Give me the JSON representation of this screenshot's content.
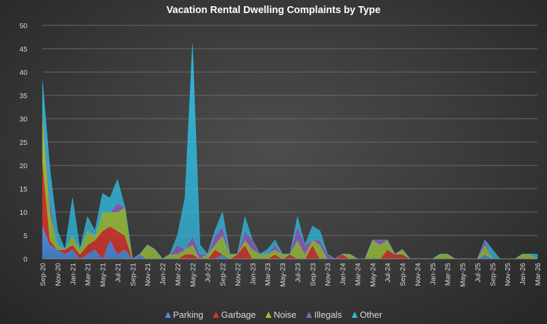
{
  "chart_data": {
    "type": "area",
    "stacked": true,
    "title": "Vacation Rental Dwelling Complaints by Type",
    "xlabel": "",
    "ylabel": "",
    "ylim": [
      0,
      50
    ],
    "yticks": [
      0,
      5,
      10,
      15,
      20,
      25,
      30,
      35,
      40,
      45,
      50
    ],
    "grid": true,
    "legend_position": "bottom",
    "x_tick_labels": [
      "Sep-20",
      "Nov-20",
      "Jan-21",
      "Mar-21",
      "May-21",
      "Jul-21",
      "Sep-21",
      "Nov-21",
      "Jan-22",
      "Mar-22",
      "May-22",
      "Jul-22",
      "Sep-22",
      "Nov-22",
      "Jan-23",
      "Mar-23",
      "May-23",
      "Jul-23",
      "Sep-23",
      "Nov-23",
      "Jan-24",
      "Mar-24",
      "May-24",
      "Jul-24",
      "Sep-24",
      "Nov-24",
      "Jan-25",
      "Mar-25",
      "May-25",
      "Jul-25",
      "Sep-25",
      "Nov-25",
      "Jan-26",
      "Mar-26"
    ],
    "x": [
      "Sep-20",
      "Oct-20",
      "Nov-20",
      "Dec-20",
      "Jan-21",
      "Feb-21",
      "Mar-21",
      "Apr-21",
      "May-21",
      "Jun-21",
      "Jul-21",
      "Aug-21",
      "Sep-21",
      "Oct-21",
      "Nov-21",
      "Dec-21",
      "Jan-22",
      "Feb-22",
      "Mar-22",
      "Apr-22",
      "May-22",
      "Jun-22",
      "Jul-22",
      "Aug-22",
      "Sep-22",
      "Oct-22",
      "Nov-22",
      "Dec-22",
      "Jan-23",
      "Feb-23",
      "Mar-23",
      "Apr-23",
      "May-23",
      "Jun-23",
      "Jul-23",
      "Aug-23",
      "Sep-23",
      "Oct-23",
      "Nov-23",
      "Dec-23",
      "Jan-24",
      "Feb-24",
      "Mar-24",
      "Apr-24",
      "May-24",
      "Jun-24",
      "Jul-24",
      "Aug-24",
      "Sep-24",
      "Oct-24",
      "Nov-24",
      "Dec-24",
      "Jan-25",
      "Feb-25",
      "Mar-25",
      "Apr-25",
      "May-25",
      "Jun-25",
      "Jul-25",
      "Aug-25",
      "Sep-25",
      "Oct-25",
      "Nov-25",
      "Dec-25",
      "Jan-26",
      "Feb-26",
      "Mar-26"
    ],
    "series": [
      {
        "name": "Parking",
        "color": "#4a8ee6",
        "values": [
          7,
          3,
          2,
          1,
          2,
          0,
          1,
          2,
          0,
          4,
          1,
          2,
          0,
          1,
          0,
          0,
          0,
          0,
          0,
          0,
          0,
          0,
          0,
          0,
          1,
          0,
          0,
          0,
          0,
          0,
          0,
          0,
          0,
          0,
          0,
          0,
          0,
          0,
          0,
          0,
          0,
          0,
          0,
          0,
          0,
          0,
          0,
          0,
          0,
          0,
          0,
          0,
          0,
          0,
          0,
          0,
          0,
          0,
          0,
          1,
          0,
          0,
          0,
          0,
          0,
          0,
          0
        ]
      },
      {
        "name": "Garbage",
        "color": "#d9342b",
        "values": [
          14,
          1,
          0,
          1,
          1,
          1,
          2,
          2,
          6,
          3,
          5,
          3,
          0,
          0,
          0,
          0,
          0,
          0,
          0,
          1,
          1,
          0,
          0,
          2,
          0,
          0,
          1,
          3,
          0,
          0,
          0,
          1,
          0,
          1,
          0,
          0,
          3,
          0,
          0,
          0,
          1,
          0,
          0,
          0,
          0,
          0,
          2,
          1,
          1,
          0,
          0,
          0,
          0,
          0,
          0,
          0,
          0,
          0,
          0,
          0,
          0,
          0,
          0,
          0,
          0,
          0,
          0
        ]
      },
      {
        "name": "Noise",
        "color": "#9bc43a",
        "values": [
          10,
          6,
          1,
          0,
          2,
          1,
          3,
          1,
          4,
          3,
          4,
          6,
          0,
          0,
          3,
          2,
          0,
          1,
          1,
          1,
          2,
          0,
          1,
          1,
          4,
          1,
          0,
          1,
          2,
          1,
          1,
          1,
          1,
          0,
          4,
          1,
          1,
          3,
          0,
          0,
          0,
          1,
          0,
          0,
          4,
          3,
          2,
          0,
          1,
          0,
          0,
          0,
          0,
          1,
          1,
          0,
          0,
          0,
          0,
          2,
          0,
          0,
          0,
          0,
          1,
          1,
          0
        ]
      },
      {
        "name": "Illegals",
        "color": "#8e5fc2",
        "values": [
          1,
          2,
          0,
          0,
          0,
          0,
          0,
          0,
          0,
          0,
          2,
          0,
          0,
          0,
          0,
          0,
          0,
          0,
          2,
          0,
          2,
          1,
          0,
          2,
          2,
          0,
          0,
          2,
          2,
          0,
          0,
          1,
          0,
          0,
          3,
          2,
          0,
          1,
          1,
          0,
          0,
          0,
          0,
          0,
          0,
          1,
          0,
          0,
          0,
          0,
          0,
          0,
          0,
          0,
          0,
          0,
          0,
          0,
          0,
          1,
          0,
          0,
          0,
          0,
          0,
          0,
          0
        ]
      },
      {
        "name": "Other",
        "color": "#2fb6d9",
        "values": [
          6,
          7,
          3,
          0,
          8,
          0,
          3,
          1,
          4,
          3,
          5,
          0,
          0,
          0,
          0,
          0,
          0,
          0,
          2,
          11,
          41,
          2,
          0,
          1,
          3,
          0,
          0,
          3,
          0,
          0,
          1,
          1,
          0,
          0,
          2,
          0,
          3,
          2,
          0,
          0,
          0,
          0,
          0,
          0,
          0,
          0,
          0,
          0,
          0,
          0,
          0,
          0,
          0,
          0,
          0,
          0,
          0,
          0,
          0,
          0,
          2,
          0,
          0,
          0,
          0,
          0,
          1
        ]
      }
    ]
  }
}
